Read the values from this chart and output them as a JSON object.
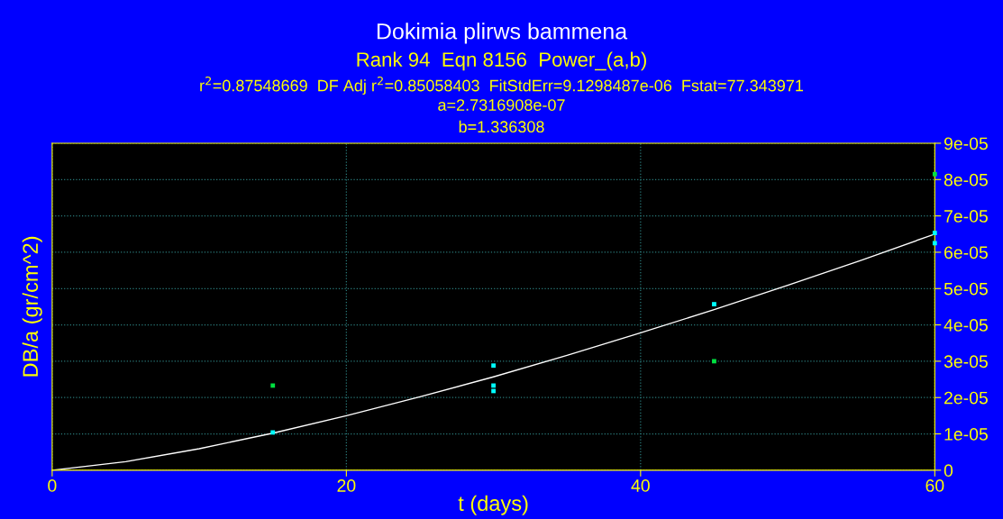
{
  "chart_data": {
    "type": "scatter",
    "title": "Dokimia plirws bammena",
    "subtitle": "Rank 94  Eqn 8156  Power_(a,b)",
    "annotations": [
      "r$^{2}$=0.87548669  DF Adj r$^{2}$=0.85058403  FitStdErr=9.1298487e-06  Fstat=77.343971",
      "a=2.7316908e-07",
      "b=1.336308"
    ],
    "xlabel": "t (days)",
    "ylabel": "DB/a (gr/cm^2)",
    "series": [
      {
        "color": "#00e040",
        "x": [
          15,
          45,
          60
        ],
        "values": [
          2.33e-05,
          3e-05,
          8.15e-05
        ]
      },
      {
        "color": "#00ffff",
        "x": [
          15,
          30,
          30,
          30,
          45,
          60,
          60
        ],
        "values": [
          1.04e-05,
          2.88e-05,
          2.33e-05,
          2.18e-05,
          4.57e-05,
          6.53e-05,
          6.25e-05
        ]
      },
      {
        "type": "line",
        "marker": "none",
        "color": "#ffffff",
        "x": [
          0,
          5,
          10,
          15,
          20,
          25,
          30,
          35,
          40,
          45,
          50,
          55,
          60
        ],
        "values": [
          0,
          2.35e-06,
          5.93e-06,
          1.02e-05,
          1.5e-05,
          2.02e-05,
          2.57e-05,
          3.16e-05,
          3.78e-05,
          4.42e-05,
          5.09e-05,
          5.78e-05,
          6.5e-05
        ]
      }
    ],
    "marker": "square",
    "grid": true,
    "xlim": [
      0,
      60
    ],
    "xticks": [
      0,
      20,
      40,
      60
    ],
    "ylim": [
      0,
      9e-05
    ],
    "yticks": [
      0,
      {
        "value": 1e-05,
        "label": "1e-05"
      },
      {
        "value": 2e-05,
        "label": "2e-05"
      },
      {
        "value": 3e-05,
        "label": "3e-05"
      },
      {
        "value": 4e-05,
        "label": "4e-05"
      },
      {
        "value": 5e-05,
        "label": "5e-05"
      },
      {
        "value": 6e-05,
        "label": "6e-05"
      },
      {
        "value": 7e-05,
        "label": "7e-05"
      },
      {
        "value": 8e-05,
        "label": "8e-05"
      },
      {
        "value": 9e-05,
        "label": "9e-05"
      }
    ]
  }
}
